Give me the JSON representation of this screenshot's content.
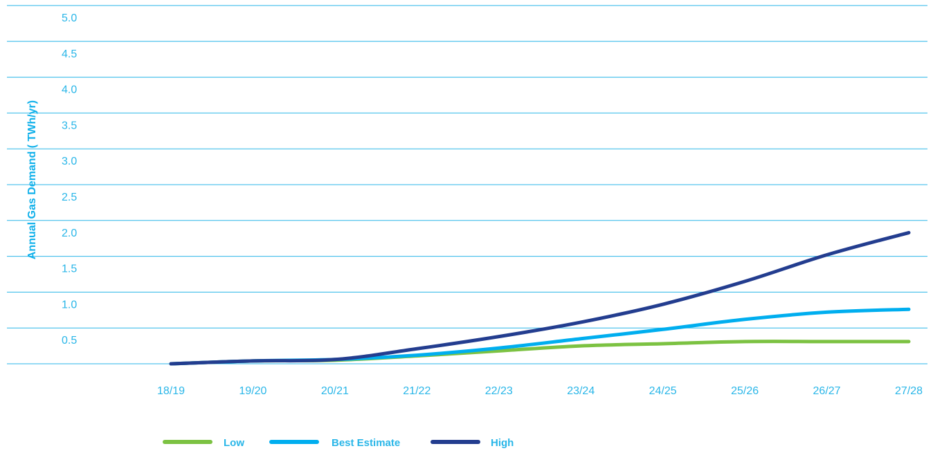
{
  "chart_data": {
    "type": "line",
    "title": "",
    "xlabel": "",
    "ylabel": "Annual Gas Demand ( TWh/yr)",
    "categories": [
      "18/19",
      "19/20",
      "20/21",
      "21/22",
      "22/23",
      "23/24",
      "24/25",
      "25/26",
      "26/27",
      "27/28"
    ],
    "ylim": [
      0,
      5.0
    ],
    "yticks": [
      "5.0",
      "4.5",
      "4.0",
      "3.5",
      "3.0",
      "2.5",
      "2.0",
      "1.5",
      "1.0",
      "0.5"
    ],
    "grid": true,
    "legend_position": "bottom-left",
    "series": [
      {
        "name": "Low",
        "color": "#7cc242",
        "values": [
          0.0,
          0.04,
          0.05,
          0.11,
          0.18,
          0.25,
          0.28,
          0.31,
          0.31,
          0.31
        ]
      },
      {
        "name": "Best Estimate",
        "color": "#00aeef",
        "values": [
          0.0,
          0.04,
          0.06,
          0.12,
          0.22,
          0.35,
          0.48,
          0.62,
          0.72,
          0.76
        ]
      },
      {
        "name": "High",
        "color": "#233d8f",
        "values": [
          0.0,
          0.04,
          0.06,
          0.21,
          0.38,
          0.58,
          0.83,
          1.15,
          1.52,
          1.83
        ]
      }
    ]
  }
}
